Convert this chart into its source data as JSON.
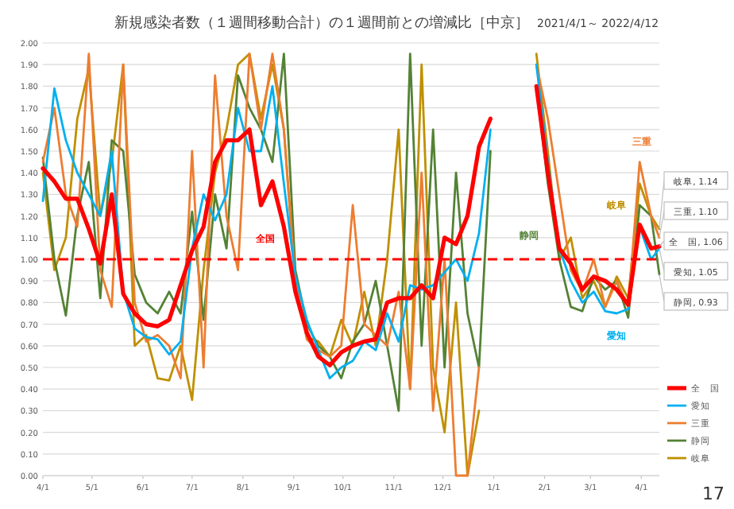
{
  "chart_data": {
    "type": "line",
    "title": "新規感染者数（１週間移動合計）の１週間前との増減比［中京］",
    "subtitle": "2021/4/1～ 2022/4/12",
    "x": [
      "2021-04-01",
      "2021-04-08",
      "2021-04-15",
      "2021-04-22",
      "2021-04-29",
      "2021-05-06",
      "2021-05-13",
      "2021-05-20",
      "2021-05-27",
      "2021-06-03",
      "2021-06-10",
      "2021-06-17",
      "2021-06-24",
      "2021-07-01",
      "2021-07-08",
      "2021-07-15",
      "2021-07-22",
      "2021-07-29",
      "2021-08-05",
      "2021-08-12",
      "2021-08-19",
      "2021-08-26",
      "2021-09-02",
      "2021-09-09",
      "2021-09-16",
      "2021-09-23",
      "2021-09-30",
      "2021-10-07",
      "2021-10-14",
      "2021-10-21",
      "2021-10-28",
      "2021-11-04",
      "2021-11-11",
      "2021-11-18",
      "2021-11-25",
      "2021-12-02",
      "2021-12-09",
      "2021-12-16",
      "2021-12-23",
      "2021-12-30",
      "2022-01-27",
      "2022-02-03",
      "2022-02-10",
      "2022-02-17",
      "2022-02-24",
      "2022-03-03",
      "2022-03-10",
      "2022-03-17",
      "2022-03-24",
      "2022-03-31",
      "2022-04-07",
      "2022-04-12"
    ],
    "xlim": [
      "2021-04-01",
      "2022-04-12"
    ],
    "xticks": [
      {
        "value": "2021-04-01",
        "label": "4/1"
      },
      {
        "value": "2021-05-01",
        "label": "5/1"
      },
      {
        "value": "2021-06-01",
        "label": "6/1"
      },
      {
        "value": "2021-07-01",
        "label": "7/1"
      },
      {
        "value": "2021-08-01",
        "label": "8/1"
      },
      {
        "value": "2021-09-01",
        "label": "9/1"
      },
      {
        "value": "2021-10-01",
        "label": "10/1"
      },
      {
        "value": "2021-11-01",
        "label": "11/1"
      },
      {
        "value": "2021-12-01",
        "label": "12/1"
      },
      {
        "value": "2022-01-01",
        "label": "1/1"
      },
      {
        "value": "2022-02-01",
        "label": "2/1"
      },
      {
        "value": "2022-03-01",
        "label": "3/1"
      },
      {
        "value": "2022-04-01",
        "label": "4/1"
      }
    ],
    "series": [
      {
        "name": "全　国",
        "color": "#ff0000",
        "values": [
          1.42,
          1.36,
          1.28,
          1.28,
          1.14,
          0.98,
          1.3,
          0.84,
          0.75,
          0.7,
          0.69,
          0.72,
          0.88,
          1.04,
          1.15,
          1.45,
          1.55,
          1.55,
          1.6,
          1.25,
          1.36,
          1.15,
          0.85,
          0.66,
          0.55,
          0.51,
          0.57,
          0.6,
          0.62,
          0.63,
          0.8,
          0.82,
          0.82,
          0.88,
          0.82,
          1.1,
          1.07,
          1.2,
          1.52,
          1.65,
          1.8,
          1.4,
          1.05,
          0.98,
          0.86,
          0.92,
          0.9,
          0.86,
          0.79,
          1.16,
          1.05,
          1.06
        ],
        "value_labels": [
          null,
          null,
          null,
          null,
          null,
          null,
          null,
          null,
          null,
          null,
          null,
          null,
          null,
          null,
          null,
          null,
          null,
          null,
          null,
          null,
          null,
          null,
          null,
          null,
          null,
          null,
          null,
          null,
          null,
          null,
          null,
          null,
          null,
          null,
          null,
          null,
          null,
          null,
          null,
          null,
          null,
          null,
          null,
          null,
          null,
          null,
          null,
          null,
          null,
          null,
          null,
          "全　国, 1.06"
        ]
      },
      {
        "name": "愛知",
        "color": "#00b0f0",
        "values": [
          1.27,
          1.79,
          1.55,
          1.4,
          1.3,
          1.2,
          1.5,
          0.85,
          0.68,
          0.64,
          0.63,
          0.56,
          0.62,
          1.05,
          1.3,
          1.18,
          1.3,
          1.7,
          1.5,
          1.5,
          1.8,
          1.35,
          0.92,
          0.72,
          0.58,
          0.45,
          0.5,
          0.53,
          0.62,
          0.58,
          0.75,
          0.62,
          0.88,
          0.86,
          0.88,
          0.94,
          1.0,
          0.9,
          1.12,
          1.6,
          1.9,
          1.45,
          1.05,
          0.9,
          0.8,
          0.85,
          0.76,
          0.75,
          0.77,
          1.15,
          1.0,
          1.05
        ],
        "value_labels": [
          null,
          null,
          null,
          null,
          null,
          null,
          null,
          null,
          null,
          null,
          null,
          null,
          null,
          null,
          null,
          null,
          null,
          null,
          null,
          null,
          null,
          null,
          null,
          null,
          null,
          null,
          null,
          null,
          null,
          null,
          null,
          null,
          null,
          null,
          null,
          null,
          null,
          null,
          null,
          null,
          null,
          null,
          null,
          null,
          null,
          null,
          null,
          null,
          null,
          null,
          null,
          "愛知, 1.05"
        ]
      },
      {
        "name": "三重",
        "color": "#ed7d31",
        "values": [
          1.45,
          1.7,
          1.3,
          1.15,
          1.95,
          0.95,
          0.78,
          1.9,
          0.8,
          0.62,
          0.65,
          0.6,
          0.45,
          1.5,
          0.5,
          1.85,
          1.2,
          0.95,
          1.95,
          1.6,
          1.95,
          1.6,
          0.9,
          0.63,
          0.58,
          0.55,
          0.6,
          1.25,
          0.7,
          0.65,
          0.6,
          0.85,
          0.4,
          1.4,
          0.3,
          1.0,
          0.0,
          0.0,
          0.5,
          null,
          1.9,
          1.65,
          1.3,
          0.95,
          0.85,
          1.0,
          0.78,
          0.9,
          0.78,
          1.45,
          1.2,
          1.1
        ],
        "value_labels": [
          null,
          null,
          null,
          null,
          null,
          null,
          null,
          null,
          null,
          null,
          null,
          null,
          null,
          null,
          null,
          null,
          null,
          null,
          null,
          null,
          null,
          null,
          null,
          null,
          null,
          null,
          null,
          null,
          null,
          null,
          null,
          null,
          null,
          null,
          null,
          null,
          null,
          null,
          null,
          null,
          null,
          null,
          null,
          null,
          null,
          null,
          null,
          null,
          null,
          null,
          null,
          "三重, 1.10"
        ]
      },
      {
        "name": "静岡",
        "color": "#548235",
        "values": [
          1.47,
          1.0,
          0.74,
          1.2,
          1.45,
          0.82,
          1.55,
          1.5,
          0.93,
          0.8,
          0.75,
          0.85,
          0.75,
          1.22,
          0.72,
          1.3,
          1.05,
          1.85,
          1.7,
          1.6,
          1.45,
          1.95,
          0.95,
          0.7,
          0.6,
          0.55,
          0.45,
          0.62,
          0.7,
          0.9,
          0.6,
          0.3,
          1.95,
          0.6,
          1.6,
          0.5,
          1.4,
          0.75,
          0.5,
          1.5,
          1.8,
          1.35,
          1.0,
          0.78,
          0.76,
          0.92,
          0.86,
          0.9,
          0.73,
          1.25,
          1.2,
          0.93
        ],
        "value_labels": [
          null,
          null,
          null,
          null,
          null,
          null,
          null,
          null,
          null,
          null,
          null,
          null,
          null,
          null,
          null,
          null,
          null,
          null,
          null,
          null,
          null,
          null,
          null,
          null,
          null,
          null,
          null,
          null,
          null,
          null,
          null,
          null,
          null,
          null,
          null,
          null,
          null,
          null,
          null,
          null,
          null,
          null,
          null,
          null,
          null,
          null,
          null,
          null,
          null,
          null,
          null,
          "静岡, 0.93"
        ]
      },
      {
        "name": "岐阜",
        "color": "#bf9000",
        "values": [
          1.4,
          0.95,
          1.1,
          1.65,
          1.88,
          1.2,
          1.45,
          1.9,
          0.6,
          0.65,
          0.45,
          0.44,
          0.6,
          0.35,
          0.95,
          1.4,
          1.6,
          1.9,
          1.95,
          1.65,
          1.9,
          1.6,
          0.88,
          0.64,
          0.62,
          0.55,
          0.72,
          0.6,
          0.85,
          0.6,
          1.0,
          1.6,
          0.4,
          1.9,
          0.5,
          0.2,
          0.8,
          0.0,
          0.3,
          null,
          1.95,
          1.5,
          1.0,
          1.1,
          0.82,
          0.9,
          0.78,
          0.92,
          0.82,
          1.35,
          1.2,
          1.14
        ],
        "value_labels": [
          null,
          null,
          null,
          null,
          null,
          null,
          null,
          null,
          null,
          null,
          null,
          null,
          null,
          null,
          null,
          null,
          null,
          null,
          null,
          null,
          null,
          null,
          null,
          null,
          null,
          null,
          null,
          null,
          null,
          null,
          null,
          null,
          null,
          null,
          null,
          null,
          null,
          null,
          null,
          null,
          null,
          null,
          null,
          null,
          null,
          null,
          null,
          null,
          null,
          null,
          null,
          "岐阜, 1.14"
        ]
      }
    ],
    "ylim": [
      0,
      2
    ],
    "yticks": [
      {
        "value": 0,
        "label": "0.00"
      },
      {
        "value": 0.1,
        "label": "0.10"
      },
      {
        "value": 0.2,
        "label": "0.20"
      },
      {
        "value": 0.3,
        "label": "0.30"
      },
      {
        "value": 0.4,
        "label": "0.40"
      },
      {
        "value": 0.5,
        "label": "0.50"
      },
      {
        "value": 0.6,
        "label": "0.60"
      },
      {
        "value": 0.7,
        "label": "0.70"
      },
      {
        "value": 0.8,
        "label": "0.80"
      },
      {
        "value": 0.9,
        "label": "0.90"
      },
      {
        "value": 1,
        "label": "1.00"
      },
      {
        "value": 1.1,
        "label": "1.10"
      },
      {
        "value": 1.2,
        "label": "1.20"
      },
      {
        "value": 1.3,
        "label": "1.30"
      },
      {
        "value": 1.4,
        "label": "1.40"
      },
      {
        "value": 1.5,
        "label": "1.50"
      },
      {
        "value": 1.6,
        "label": "1.60"
      },
      {
        "value": 1.7,
        "label": "1.70"
      },
      {
        "value": 1.8,
        "label": "1.80"
      },
      {
        "value": 1.9,
        "label": "1.90"
      },
      {
        "value": 2,
        "label": "2.00"
      }
    ],
    "grid": "y",
    "legend": "bottom right",
    "line_style": "solid",
    "marker": "none",
    "ref_lines": [
      {
        "axis": "y",
        "value": 1,
        "color": "#ff0000",
        "line_style": "dashed"
      }
    ],
    "annotations": [
      "全国",
      "愛知",
      "三重",
      "静岡",
      "岐阜",
      "17"
    ]
  }
}
